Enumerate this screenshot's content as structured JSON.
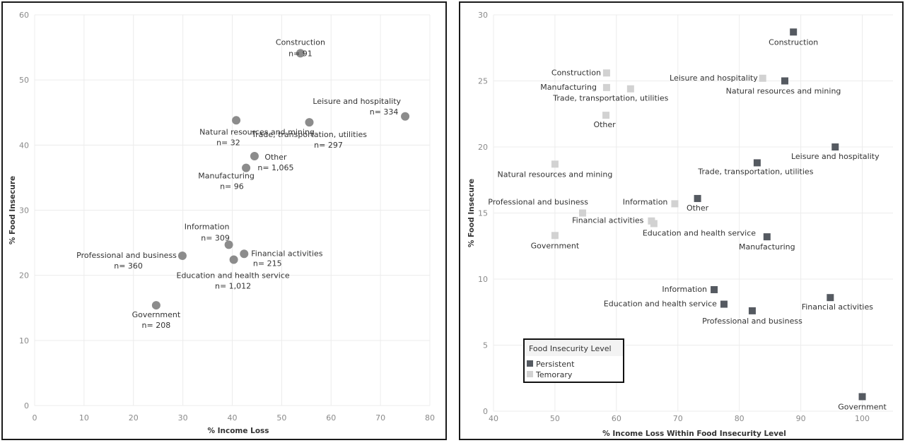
{
  "colors": {
    "left_point": "#8c8c8c",
    "persistent": "#555a61",
    "temporary": "#d2d2d2",
    "grid": "#ececec"
  },
  "chart_data": [
    {
      "type": "scatter",
      "xlabel": "% Income Loss",
      "ylabel": "% Food Insecure",
      "xlim": [
        0,
        80
      ],
      "ylim": [
        0,
        60
      ],
      "xticks": [
        0,
        10,
        20,
        30,
        40,
        50,
        60,
        70,
        80
      ],
      "yticks": [
        0,
        10,
        20,
        30,
        40,
        50,
        60
      ],
      "grid": true,
      "points": [
        {
          "label": "Construction",
          "n": "n= 91",
          "x": 53.8,
          "y": 54.1
        },
        {
          "label": "Leisure and hospitality",
          "n": "n= 334",
          "x": 75.0,
          "y": 44.4
        },
        {
          "label": "Natural resources and mining",
          "n": "n= 32",
          "x": 40.8,
          "y": 43.8
        },
        {
          "label": "Trade, transportation, utilities",
          "n": "n= 297",
          "x": 55.6,
          "y": 43.5
        },
        {
          "label": "Other",
          "n": "n= 1,065",
          "x": 44.5,
          "y": 38.3
        },
        {
          "label": "Manufacturing",
          "n": "n= 96",
          "x": 42.8,
          "y": 36.5
        },
        {
          "label": "Information",
          "n": "n= 309",
          "x": 39.3,
          "y": 24.7
        },
        {
          "label": "Professional and business",
          "n": "n= 360",
          "x": 29.9,
          "y": 23.0
        },
        {
          "label": "Financial activities",
          "n": "n= 215",
          "x": 42.4,
          "y": 23.3
        },
        {
          "label": "Education and health service",
          "n": "n= 1,012",
          "x": 40.3,
          "y": 22.4
        },
        {
          "label": "Government",
          "n": "n= 208",
          "x": 24.6,
          "y": 15.4
        }
      ]
    },
    {
      "type": "scatter",
      "xlabel": "% Income Loss Within Food Insecurity Level",
      "ylabel": "% Food Insecure",
      "xlim": [
        40,
        105
      ],
      "ylim": [
        0,
        30
      ],
      "xticks": [
        40,
        50,
        60,
        70,
        80,
        90,
        100
      ],
      "yticks": [
        0,
        5,
        10,
        15,
        20,
        25,
        30
      ],
      "grid": true,
      "legend": {
        "title": "Food Insecurity Level",
        "placement": "bottom-left",
        "items": [
          "Persistent",
          "Temorary"
        ]
      },
      "series": [
        {
          "name": "Persistent",
          "points": [
            {
              "label": "Construction",
              "x": 88.8,
              "y": 28.7
            },
            {
              "label": "Natural resources and mining",
              "x": 87.4,
              "y": 25.0
            },
            {
              "label": "Leisure and hospitality",
              "x": 95.6,
              "y": 20.0
            },
            {
              "label": "Trade, transportation, utilities",
              "x": 82.9,
              "y": 18.8
            },
            {
              "label": "Other",
              "x": 73.2,
              "y": 16.1
            },
            {
              "label": "Manufacturing",
              "x": 84.5,
              "y": 13.2
            },
            {
              "label": "Information",
              "x": 75.9,
              "y": 9.2
            },
            {
              "label": "Education and health service",
              "x": 77.5,
              "y": 8.1
            },
            {
              "label": "Professional and business",
              "x": 82.1,
              "y": 7.6
            },
            {
              "label": "Financial activities",
              "x": 94.8,
              "y": 8.6
            },
            {
              "label": "Government",
              "x": 100.0,
              "y": 1.1
            }
          ]
        },
        {
          "name": "Temorary",
          "points": [
            {
              "label": "Construction",
              "x": 58.4,
              "y": 25.6
            },
            {
              "label": "Manufacturing",
              "x": 58.4,
              "y": 24.5
            },
            {
              "label": "Trade, transportation, utilities",
              "x": 62.3,
              "y": 24.4
            },
            {
              "label": "Leisure and hospitality",
              "x": 83.8,
              "y": 25.2
            },
            {
              "label": "Other",
              "x": 58.3,
              "y": 22.4
            },
            {
              "label": "Natural resources and mining",
              "x": 50.0,
              "y": 18.7
            },
            {
              "label": "Professional and business",
              "x": 54.5,
              "y": 15.0
            },
            {
              "label": "Information",
              "x": 69.5,
              "y": 15.7
            },
            {
              "label": "Financial activities",
              "x": 65.7,
              "y": 14.4
            },
            {
              "label": "Education and health service",
              "x": 66.1,
              "y": 14.2
            },
            {
              "label": "Government",
              "x": 50.0,
              "y": 13.3
            }
          ]
        }
      ]
    }
  ]
}
